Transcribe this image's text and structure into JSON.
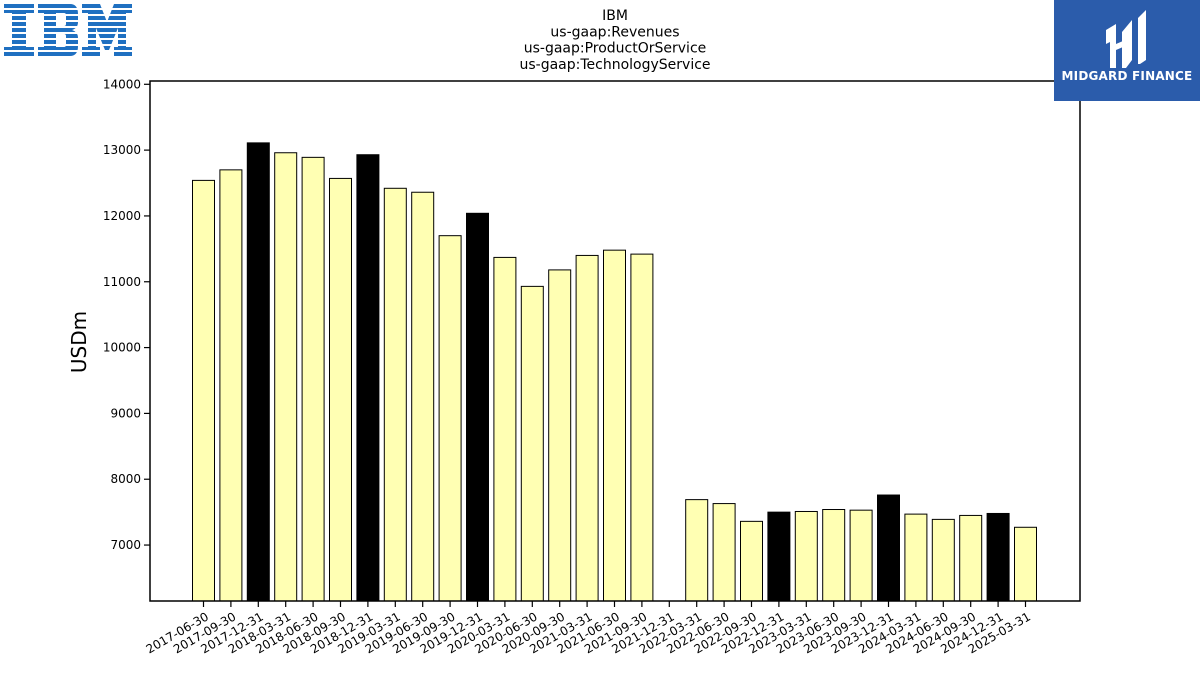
{
  "logos": {
    "company": "IBM",
    "brand": "MIDGARD FINANCE",
    "company_color": "#1f70c1",
    "brand_bg": "#2b5cab"
  },
  "chart_data": {
    "type": "bar",
    "title": [
      "IBM",
      "us-gaap:Revenues",
      "us-gaap:ProductOrService",
      "us-gaap:TechnologyService"
    ],
    "ylabel": "USDm",
    "xlabel": "",
    "ylim": [
      6150,
      14050
    ],
    "yticks": [
      7000,
      8000,
      9000,
      10000,
      11000,
      12000,
      13000,
      14000
    ],
    "categories": [
      "2017-06-30",
      "2017-09-30",
      "2017-12-31",
      "2018-03-31",
      "2018-06-30",
      "2018-09-30",
      "2018-12-31",
      "2019-03-31",
      "2019-06-30",
      "2019-09-30",
      "2019-12-31",
      "2020-03-31",
      "2020-06-30",
      "2020-09-30",
      "2021-03-31",
      "2021-06-30",
      "2021-09-30",
      "2021-12-31",
      "2022-03-31",
      "2022-06-30",
      "2022-09-30",
      "2022-12-31",
      "2023-03-31",
      "2023-06-30",
      "2023-09-30",
      "2023-12-31",
      "2024-03-31",
      "2024-06-30",
      "2024-09-30",
      "2024-12-31",
      "2025-03-31"
    ],
    "values": [
      12540,
      12700,
      13110,
      12960,
      12890,
      12570,
      12930,
      12420,
      12360,
      11700,
      12040,
      11370,
      10930,
      11180,
      11400,
      11480,
      11420,
      null,
      7690,
      7630,
      7360,
      7500,
      7510,
      7540,
      7530,
      7760,
      7470,
      7390,
      7450,
      7480,
      7270
    ],
    "bar_colors": {
      "quarter": "#ffffb3",
      "year_end": "#000000",
      "edge": "#000000"
    }
  }
}
